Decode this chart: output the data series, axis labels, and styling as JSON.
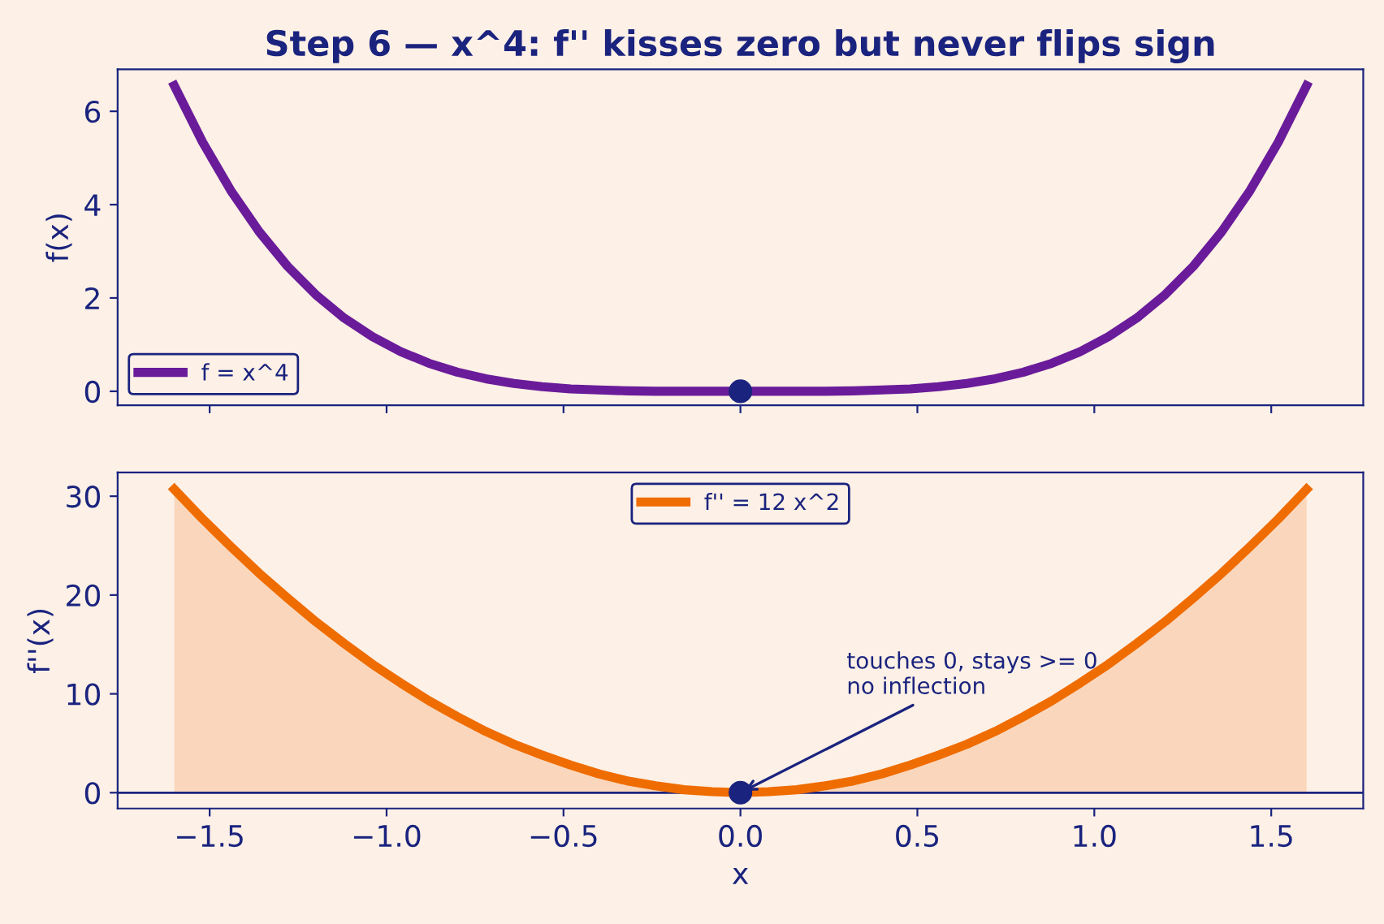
{
  "chart_data": [
    {
      "type": "line",
      "title": "Step 6 — x^4: f'' kisses zero but never flips sign",
      "ylabel": "f(x)",
      "x": [
        -1.6,
        -1.52,
        -1.44,
        -1.36,
        -1.28,
        -1.2,
        -1.12,
        -1.04,
        -0.96,
        -0.88,
        -0.8,
        -0.72,
        -0.64,
        -0.56,
        -0.48,
        -0.4,
        -0.32,
        -0.24,
        -0.16,
        -0.08,
        0,
        0.08,
        0.16,
        0.24,
        0.32,
        0.4,
        0.48,
        0.56,
        0.64,
        0.72,
        0.8,
        0.88,
        0.96,
        1.04,
        1.12,
        1.2,
        1.28,
        1.36,
        1.44,
        1.52,
        1.6
      ],
      "series": [
        {
          "name": "f = x^4",
          "color": "#6a1b9a",
          "values": [
            6.55,
            5.34,
            4.3,
            3.42,
            2.68,
            2.07,
            1.57,
            1.17,
            0.85,
            0.6,
            0.41,
            0.27,
            0.17,
            0.1,
            0.05,
            0.03,
            0.01,
            0,
            0,
            0,
            0,
            0,
            0,
            0,
            0.01,
            0.03,
            0.05,
            0.1,
            0.17,
            0.27,
            0.41,
            0.6,
            0.85,
            1.17,
            1.57,
            2.07,
            2.68,
            3.42,
            4.3,
            5.34,
            6.55
          ]
        },
        {
          "type": "scatter",
          "x": [
            0
          ],
          "values": [
            0
          ],
          "color": "#1a237e",
          "marker": "circle"
        }
      ],
      "xlim": [
        -1.76,
        1.76
      ],
      "xticks": [
        -1.5,
        -1,
        -0.5,
        0,
        0.5,
        1,
        1.5
      ],
      "ylim": [
        -0.3,
        6.9
      ],
      "yticks": [
        0,
        2,
        4,
        6
      ],
      "tick_labels": "y",
      "legend": "bottom left",
      "grid": false
    },
    {
      "type": "area",
      "xlabel": "x",
      "ylabel": "f''(x)",
      "x": [
        -1.6,
        -1.52,
        -1.44,
        -1.36,
        -1.28,
        -1.2,
        -1.12,
        -1.04,
        -0.96,
        -0.88,
        -0.8,
        -0.72,
        -0.64,
        -0.56,
        -0.48,
        -0.4,
        -0.32,
        -0.24,
        -0.16,
        -0.08,
        0,
        0.08,
        0.16,
        0.24,
        0.32,
        0.4,
        0.48,
        0.56,
        0.64,
        0.72,
        0.8,
        0.88,
        0.96,
        1.04,
        1.12,
        1.2,
        1.28,
        1.36,
        1.44,
        1.52,
        1.6
      ],
      "series": [
        {
          "name": "f'' = 12 x^2",
          "color": "#ef6c00",
          "values": [
            30.7,
            27.7,
            24.9,
            22.2,
            19.7,
            17.3,
            15.1,
            13.0,
            11.1,
            9.3,
            7.7,
            6.2,
            4.9,
            3.8,
            2.8,
            1.9,
            1.2,
            0.7,
            0.3,
            0.1,
            0,
            0.1,
            0.3,
            0.7,
            1.2,
            1.9,
            2.8,
            3.8,
            4.9,
            6.2,
            7.7,
            9.3,
            11.1,
            13.0,
            15.1,
            17.3,
            19.7,
            22.2,
            24.9,
            27.7,
            30.7
          ]
        },
        {
          "type": "scatter",
          "x": [
            0
          ],
          "values": [
            0
          ],
          "color": "#1a237e",
          "marker": "circle"
        }
      ],
      "ref_lines": [
        {
          "axis": "y",
          "value": 0,
          "color": "#1a237e"
        }
      ],
      "annotations": [
        {
          "text": "touches 0, stays >= 0\nno inflection",
          "x": 0,
          "y": 0
        }
      ],
      "xlim": [
        -1.76,
        1.76
      ],
      "xticks": [
        -1.5,
        {
          "value": -1,
          "label": "−1.0"
        },
        -0.5,
        {
          "value": 0,
          "label": "0.0"
        },
        0.5,
        {
          "value": 1,
          "label": "1.0"
        },
        1.5
      ],
      "ylim": [
        -1.6,
        32.4
      ],
      "yticks": [
        0,
        10,
        20,
        30
      ],
      "legend": "top",
      "grid": false
    }
  ]
}
